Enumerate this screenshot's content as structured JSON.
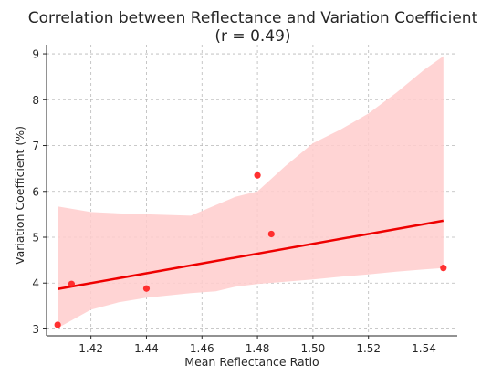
{
  "chart_data": {
    "type": "scatter",
    "title": "Correlation between Reflectance and Variation Coefficient",
    "subtitle": "(r = 0.49)",
    "xlabel": "Mean Reflectance Ratio",
    "ylabel": "Variation Coefficient (%)",
    "xlim": [
      1.404,
      1.552
    ],
    "ylim": [
      2.85,
      9.2
    ],
    "xticks": [
      1.42,
      1.44,
      1.46,
      1.48,
      1.5,
      1.52,
      1.54
    ],
    "xtick_labels": [
      "1.42",
      "1.44",
      "1.46",
      "1.48",
      "1.50",
      "1.52",
      "1.54"
    ],
    "yticks": [
      3,
      4,
      5,
      6,
      7,
      8,
      9
    ],
    "ytick_labels": [
      "3",
      "4",
      "5",
      "6",
      "7",
      "8",
      "9"
    ],
    "grid": true,
    "points": [
      {
        "x": 1.408,
        "y": 3.09
      },
      {
        "x": 1.413,
        "y": 3.98
      },
      {
        "x": 1.44,
        "y": 3.88
      },
      {
        "x": 1.48,
        "y": 6.35
      },
      {
        "x": 1.485,
        "y": 5.07
      },
      {
        "x": 1.547,
        "y": 4.33
      }
    ],
    "regression_line": {
      "x": [
        1.408,
        1.547
      ],
      "y": [
        3.87,
        5.36
      ]
    },
    "confidence_band": {
      "x": [
        1.408,
        1.42,
        1.43,
        1.44,
        1.456,
        1.465,
        1.472,
        1.48,
        1.49,
        1.5,
        1.51,
        1.52,
        1.53,
        1.54,
        1.547
      ],
      "upper": [
        5.67,
        5.55,
        5.52,
        5.5,
        5.47,
        5.7,
        5.88,
        6.0,
        6.55,
        7.05,
        7.35,
        7.7,
        8.15,
        8.65,
        8.95
      ],
      "lower": [
        3.02,
        3.42,
        3.58,
        3.68,
        3.78,
        3.82,
        3.92,
        3.98,
        4.03,
        4.08,
        4.14,
        4.19,
        4.25,
        4.3,
        4.33
      ]
    },
    "colors": {
      "points": "#ff2020",
      "line": "#ee0000",
      "band": "#ffcccc"
    }
  }
}
